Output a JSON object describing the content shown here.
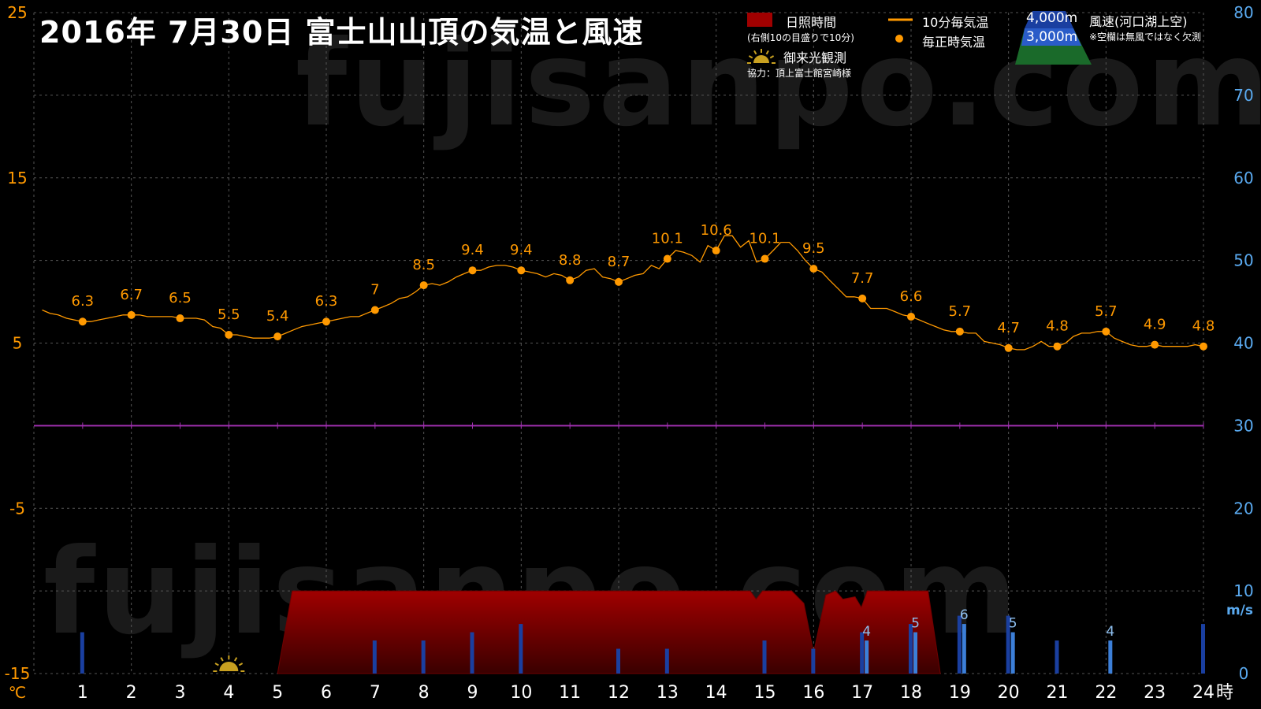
{
  "title": "2016年  7月30日   富士山山頂の気温と風速",
  "watermark": "fujisanpo.com",
  "legend": {
    "sunshine_label": "日照時間",
    "sunshine_note": "(右側10の目盛りで10分)",
    "temp10_label": "10分毎気温",
    "hourly_label": "毎正時気温",
    "sunrise_label": "御来光観測",
    "cooperation": "協力：頂上富士館宮崎様",
    "alt4000": "4,000m",
    "alt3000": "3,000m",
    "wind_label": "風速(河口湖上空)",
    "wind_note": "※空欄は無風ではなく欠測"
  },
  "colors": {
    "background": "#000000",
    "temperature": "#ff9900",
    "left_axis": "#ff9900",
    "right_axis": "#5aaaf0",
    "zero_line": "#a030b0",
    "sunshine": "#a00000",
    "wind_4000": "#1a3fa0",
    "wind_3000": "#3c7fd8",
    "grid": "#555555"
  },
  "chart_data": {
    "type": "line",
    "title": "2016年  7月30日   富士山山頂の気温と風速",
    "x_unit": "時",
    "left_axis": {
      "unit": "℃",
      "ylim": [
        -15,
        25
      ],
      "ticks": [
        -15,
        -5,
        5,
        15,
        25
      ]
    },
    "right_axis": {
      "unit": "m/s",
      "ylim": [
        0,
        80
      ],
      "ticks": [
        0,
        10,
        20,
        30,
        40,
        50,
        60,
        70,
        80
      ]
    },
    "x_ticks": [
      1,
      2,
      3,
      4,
      5,
      6,
      7,
      8,
      9,
      10,
      11,
      12,
      13,
      14,
      15,
      16,
      17,
      18,
      19,
      20,
      21,
      22,
      23,
      24
    ],
    "hourly_temperature": {
      "name": "毎正時気温",
      "x": [
        1,
        2,
        3,
        4,
        5,
        6,
        7,
        8,
        9,
        10,
        11,
        12,
        13,
        14,
        15,
        16,
        17,
        18,
        19,
        20,
        21,
        22,
        23,
        24
      ],
      "values": [
        6.3,
        6.7,
        6.5,
        5.5,
        5.4,
        6.3,
        7,
        8.5,
        9.4,
        9.4,
        8.8,
        8.7,
        10.1,
        10.6,
        10.1,
        9.5,
        7.7,
        6.6,
        5.7,
        4.7,
        4.8,
        5.7,
        4.9,
        4.8
      ],
      "labels": [
        "6.3",
        "6.7",
        "6.5",
        "5.5",
        "5.4",
        "6.3",
        "7",
        "8.5",
        "9.4",
        "9.4",
        "8.8",
        "8.7",
        "10.1",
        "10.6",
        "10.1",
        "9.5",
        "7.7",
        "6.6",
        "5.7",
        "4.7",
        "4.8",
        "5.7",
        "4.9",
        "4.8"
      ]
    },
    "ten_minute_temperature": {
      "name": "10分毎気温",
      "points": [
        [
          0.17,
          7.0
        ],
        [
          0.33,
          6.8
        ],
        [
          0.5,
          6.7
        ],
        [
          0.67,
          6.5
        ],
        [
          0.83,
          6.4
        ],
        [
          1.0,
          6.3
        ],
        [
          1.17,
          6.3
        ],
        [
          1.33,
          6.4
        ],
        [
          1.5,
          6.5
        ],
        [
          1.67,
          6.6
        ],
        [
          1.83,
          6.7
        ],
        [
          2.0,
          6.7
        ],
        [
          2.17,
          6.7
        ],
        [
          2.33,
          6.6
        ],
        [
          2.5,
          6.6
        ],
        [
          2.67,
          6.6
        ],
        [
          2.83,
          6.6
        ],
        [
          3.0,
          6.5
        ],
        [
          3.17,
          6.5
        ],
        [
          3.33,
          6.5
        ],
        [
          3.5,
          6.4
        ],
        [
          3.67,
          6.0
        ],
        [
          3.83,
          5.9
        ],
        [
          4.0,
          5.5
        ],
        [
          4.17,
          5.5
        ],
        [
          4.33,
          5.4
        ],
        [
          4.5,
          5.3
        ],
        [
          4.67,
          5.3
        ],
        [
          4.83,
          5.3
        ],
        [
          5.0,
          5.4
        ],
        [
          5.17,
          5.6
        ],
        [
          5.33,
          5.8
        ],
        [
          5.5,
          6.0
        ],
        [
          5.67,
          6.1
        ],
        [
          5.83,
          6.2
        ],
        [
          6.0,
          6.3
        ],
        [
          6.17,
          6.4
        ],
        [
          6.33,
          6.5
        ],
        [
          6.5,
          6.6
        ],
        [
          6.67,
          6.6
        ],
        [
          6.83,
          6.8
        ],
        [
          7.0,
          7.0
        ],
        [
          7.17,
          7.2
        ],
        [
          7.33,
          7.4
        ],
        [
          7.5,
          7.7
        ],
        [
          7.67,
          7.8
        ],
        [
          7.83,
          8.1
        ],
        [
          8.0,
          8.5
        ],
        [
          8.17,
          8.6
        ],
        [
          8.33,
          8.5
        ],
        [
          8.5,
          8.7
        ],
        [
          8.67,
          9.0
        ],
        [
          8.83,
          9.2
        ],
        [
          9.0,
          9.4
        ],
        [
          9.17,
          9.4
        ],
        [
          9.33,
          9.6
        ],
        [
          9.5,
          9.7
        ],
        [
          9.67,
          9.7
        ],
        [
          9.83,
          9.6
        ],
        [
          10.0,
          9.4
        ],
        [
          10.17,
          9.3
        ],
        [
          10.33,
          9.2
        ],
        [
          10.5,
          9.0
        ],
        [
          10.67,
          9.2
        ],
        [
          10.83,
          9.1
        ],
        [
          11.0,
          8.8
        ],
        [
          11.17,
          9.0
        ],
        [
          11.33,
          9.4
        ],
        [
          11.5,
          9.5
        ],
        [
          11.67,
          9.0
        ],
        [
          11.83,
          8.9
        ],
        [
          12.0,
          8.7
        ],
        [
          12.17,
          8.9
        ],
        [
          12.33,
          9.1
        ],
        [
          12.5,
          9.2
        ],
        [
          12.67,
          9.7
        ],
        [
          12.83,
          9.5
        ],
        [
          13.0,
          10.1
        ],
        [
          13.17,
          10.6
        ],
        [
          13.33,
          10.5
        ],
        [
          13.5,
          10.3
        ],
        [
          13.67,
          9.9
        ],
        [
          13.83,
          10.9
        ],
        [
          14.0,
          10.6
        ],
        [
          14.17,
          11.5
        ],
        [
          14.33,
          11.5
        ],
        [
          14.5,
          10.8
        ],
        [
          14.67,
          11.2
        ],
        [
          14.83,
          9.9
        ],
        [
          15.0,
          10.1
        ],
        [
          15.17,
          10.6
        ],
        [
          15.33,
          11.1
        ],
        [
          15.5,
          11.1
        ],
        [
          15.67,
          10.6
        ],
        [
          15.83,
          10.0
        ],
        [
          16.0,
          9.5
        ],
        [
          16.17,
          9.3
        ],
        [
          16.33,
          8.8
        ],
        [
          16.5,
          8.3
        ],
        [
          16.67,
          7.8
        ],
        [
          16.83,
          7.8
        ],
        [
          17.0,
          7.7
        ],
        [
          17.17,
          7.1
        ],
        [
          17.33,
          7.1
        ],
        [
          17.5,
          7.1
        ],
        [
          17.67,
          6.9
        ],
        [
          17.83,
          6.7
        ],
        [
          18.0,
          6.6
        ],
        [
          18.17,
          6.4
        ],
        [
          18.33,
          6.2
        ],
        [
          18.5,
          6.0
        ],
        [
          18.67,
          5.8
        ],
        [
          18.83,
          5.7
        ],
        [
          19.0,
          5.7
        ],
        [
          19.17,
          5.6
        ],
        [
          19.33,
          5.6
        ],
        [
          19.5,
          5.1
        ],
        [
          19.67,
          5.0
        ],
        [
          19.83,
          4.9
        ],
        [
          20.0,
          4.7
        ],
        [
          20.17,
          4.6
        ],
        [
          20.33,
          4.6
        ],
        [
          20.5,
          4.8
        ],
        [
          20.67,
          5.1
        ],
        [
          20.83,
          4.8
        ],
        [
          21.0,
          4.8
        ],
        [
          21.17,
          5.0
        ],
        [
          21.33,
          5.4
        ],
        [
          21.5,
          5.6
        ],
        [
          21.67,
          5.6
        ],
        [
          21.83,
          5.7
        ],
        [
          22.0,
          5.7
        ],
        [
          22.17,
          5.3
        ],
        [
          22.33,
          5.1
        ],
        [
          22.5,
          4.9
        ],
        [
          22.67,
          4.8
        ],
        [
          22.83,
          4.8
        ],
        [
          23.0,
          4.9
        ],
        [
          23.17,
          4.8
        ],
        [
          23.33,
          4.8
        ],
        [
          23.5,
          4.8
        ],
        [
          23.67,
          4.8
        ],
        [
          23.83,
          4.9
        ],
        [
          24.0,
          4.8
        ]
      ]
    },
    "sunshine_minutes": {
      "name": "日照時間",
      "axis": "right",
      "points": [
        [
          5.0,
          0
        ],
        [
          5.3,
          10
        ],
        [
          14.7,
          10
        ],
        [
          14.82,
          9.0
        ],
        [
          14.95,
          10
        ],
        [
          15.55,
          10
        ],
        [
          15.8,
          8.5
        ],
        [
          16.0,
          2.5
        ],
        [
          16.25,
          9.5
        ],
        [
          16.45,
          10
        ],
        [
          16.6,
          9.0
        ],
        [
          16.85,
          9.3
        ],
        [
          16.98,
          8.0
        ],
        [
          17.1,
          10
        ],
        [
          18.35,
          10
        ],
        [
          18.6,
          0
        ]
      ]
    },
    "sunrise_observed_hour": 4.0,
    "wind_speed": {
      "axis": "right",
      "series": [
        {
          "name": "4,000m",
          "x": [
            1,
            7,
            8,
            9,
            10,
            12,
            13,
            15,
            16,
            17,
            18,
            19,
            20,
            21,
            24
          ],
          "values": [
            5,
            4,
            4,
            5,
            6,
            3,
            3,
            4,
            3,
            5,
            6,
            7,
            7,
            4,
            6
          ]
        },
        {
          "name": "3,000m",
          "x": [
            17,
            18,
            19,
            20,
            22
          ],
          "values": [
            4,
            5,
            6,
            5,
            4
          ],
          "labels": [
            "4",
            "5",
            "6",
            "5",
            "4"
          ]
        }
      ]
    }
  }
}
